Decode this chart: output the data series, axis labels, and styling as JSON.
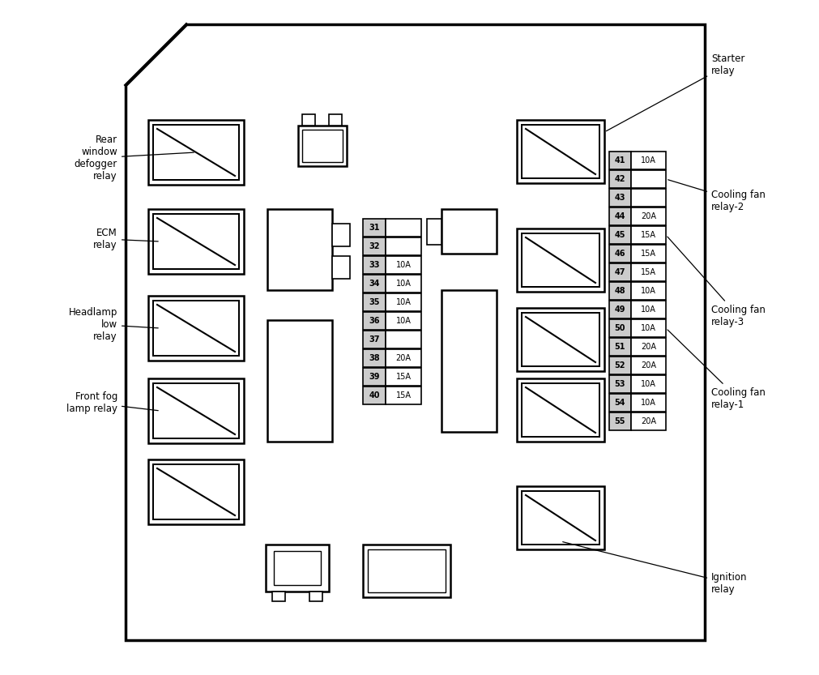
{
  "bg_color": "#ffffff",
  "fuses_left": [
    {
      "num": "31",
      "amp": ""
    },
    {
      "num": "32",
      "amp": ""
    },
    {
      "num": "33",
      "amp": "10A"
    },
    {
      "num": "34",
      "amp": "10A"
    },
    {
      "num": "35",
      "amp": "10A"
    },
    {
      "num": "36",
      "amp": "10A"
    },
    {
      "num": "37",
      "amp": ""
    },
    {
      "num": "38",
      "amp": "20A"
    },
    {
      "num": "39",
      "amp": "15A"
    },
    {
      "num": "40",
      "amp": "15A"
    }
  ],
  "fuses_right": [
    {
      "num": "41",
      "amp": "10A"
    },
    {
      "num": "42",
      "amp": ""
    },
    {
      "num": "43",
      "amp": ""
    },
    {
      "num": "44",
      "amp": "20A"
    },
    {
      "num": "45",
      "amp": "15A"
    },
    {
      "num": "46",
      "amp": "15A"
    },
    {
      "num": "47",
      "amp": "15A"
    },
    {
      "num": "48",
      "amp": "10A"
    },
    {
      "num": "49",
      "amp": "10A"
    },
    {
      "num": "50",
      "amp": "10A"
    },
    {
      "num": "51",
      "amp": "20A"
    },
    {
      "num": "52",
      "amp": "20A"
    },
    {
      "num": "53",
      "amp": "10A"
    },
    {
      "num": "54",
      "amp": "10A"
    },
    {
      "num": "55",
      "amp": "20A"
    }
  ]
}
